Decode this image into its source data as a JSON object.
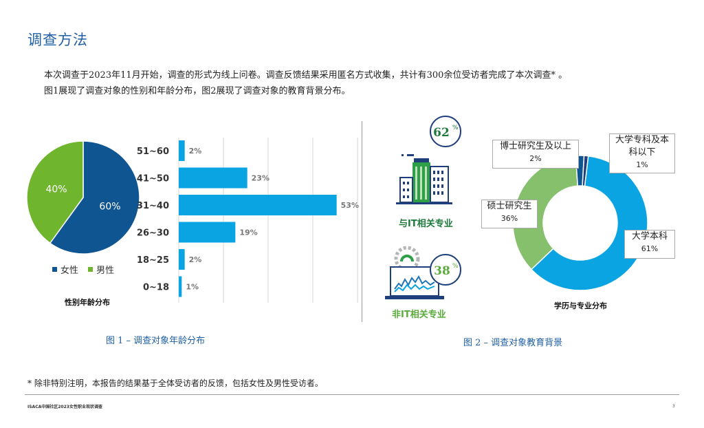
{
  "page": {
    "title": "调查方法",
    "intro_line1": "本次调查于2023年11月开始，调查的形式为线上问卷。调查反馈结果采用匿名方式收集，共计有300余位受访者完成了本次调查* 。",
    "intro_line2": "图1展现了调查对象的性别和年龄分布，图2展现了调查对象的教育背景分布。",
    "footnote": "* 除非特别注明，本报告的结果基于全体受访者的反馈，包括女性及男性受访者。",
    "footer": "ISACA中国社区2023女性职业现状调查",
    "page_number": "3"
  },
  "figure1": {
    "caption": "图 1 – 调查对象年龄分布",
    "pie_title": "性别年龄分布",
    "legend": [
      {
        "label": "女性",
        "color": "#0e5591"
      },
      {
        "label": "男性",
        "color": "#70b52e"
      }
    ]
  },
  "figure2": {
    "caption": "图 2 – 调查对象教育背景",
    "donut_title": "学历与专业分布",
    "it_related": {
      "percent": "62",
      "percent_sign": "%",
      "label": "与IT相关专业",
      "color": "#1e7a3c"
    },
    "non_it": {
      "percent": "38",
      "percent_sign": "%",
      "label": "非IT相关专业",
      "color": "#5bab3c"
    }
  },
  "chart_data": [
    {
      "type": "pie",
      "title": "性别年龄分布",
      "slices": [
        {
          "name": "女性",
          "value": 60,
          "label": "60%",
          "color": "#0e5591"
        },
        {
          "name": "男性",
          "value": 40,
          "label": "40%",
          "color": "#70b52e"
        }
      ]
    },
    {
      "type": "bar",
      "orientation": "horizontal",
      "categories": [
        "51~60",
        "41~50",
        "31~40",
        "26~30",
        "18~25",
        "0~18"
      ],
      "values": [
        2,
        23,
        53,
        19,
        2,
        1
      ],
      "labels": [
        "2%",
        "23%",
        "53%",
        "19%",
        "2%",
        "1%"
      ],
      "color": "#0aa4e3",
      "xlim": [
        0,
        60
      ],
      "grid": true
    },
    {
      "type": "pie",
      "variant": "donut",
      "title": "学历与专业分布",
      "slices": [
        {
          "name": "大学本科",
          "value": 61,
          "label": "61%",
          "color": "#0aa4e3"
        },
        {
          "name": "硕士研究生",
          "value": 36,
          "label": "36%",
          "color": "#86c06c"
        },
        {
          "name": "博士研究生及以上",
          "value": 2,
          "label": "2%",
          "color": "#0e5591"
        },
        {
          "name": "大学专科及本科以下",
          "value": 1,
          "label": "1%",
          "color": "#1f3f7a"
        }
      ]
    }
  ]
}
